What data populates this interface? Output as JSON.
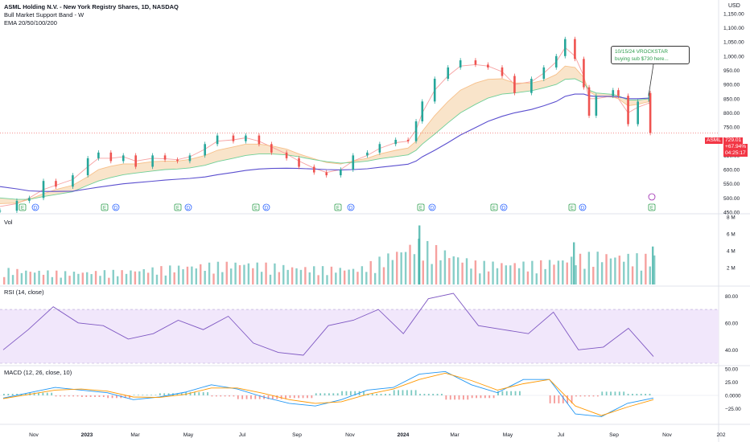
{
  "header": {
    "symbol_line": "ASML Holding N.V. - New York Registry Shares, 1D, NASDAQ",
    "indicator_1": "Bull Market Support Band - W",
    "indicator_2": "EMA 20/50/100/200"
  },
  "price_axis": {
    "currency": "USD",
    "ticks": [
      "1,150.00",
      "1,100.00",
      "1,050.00",
      "1,000.00",
      "950.00",
      "900.00",
      "850.00",
      "800.00",
      "750.00",
      "700.00",
      "650.00",
      "600.00",
      "550.00",
      "500.00",
      "450.00"
    ]
  },
  "price_tag": {
    "symbol": "ASML",
    "last": "729.01",
    "change": "+67.94%",
    "countdown": "04:25:17",
    "color": "#f23645"
  },
  "annotation": {
    "line1": "10/15/24 VROCKSTAR",
    "line2": "buying sub $730 here...",
    "color": "#2e9e4d"
  },
  "event_markers": [
    {
      "label": "E"
    },
    {
      "label": "D"
    },
    {
      "label": "E"
    },
    {
      "label": "D"
    },
    {
      "label": "E"
    },
    {
      "label": "D"
    },
    {
      "label": "E"
    },
    {
      "label": "D"
    },
    {
      "label": "E"
    },
    {
      "label": "D"
    },
    {
      "label": "E"
    },
    {
      "label": "D"
    },
    {
      "label": "E"
    },
    {
      "label": "D"
    },
    {
      "label": "E"
    },
    {
      "label": "D"
    },
    {
      "label": "E"
    }
  ],
  "volume_pane": {
    "title": "Vol",
    "ticks": [
      "8 M",
      "6 M",
      "4 M",
      "2 M"
    ]
  },
  "rsi_pane": {
    "title": "RSI (14, close)",
    "ticks": [
      "80.00",
      "60.00",
      "40.00"
    ]
  },
  "macd_pane": {
    "title": "MACD (12, 26, close, 10)",
    "ticks": [
      "50.00",
      "25.00",
      "0.0000",
      "−25.00"
    ]
  },
  "time_axis": [
    "Nov",
    "2023",
    "Mar",
    "May",
    "Jul",
    "Sep",
    "Nov",
    "2024",
    "Mar",
    "May",
    "Jul",
    "Sep",
    "Nov",
    "202"
  ],
  "colors": {
    "up": "#26a69a",
    "down": "#ef5350",
    "ema20": "#f6a0a0",
    "ema50": "#f7c08a",
    "ema100": "#6fcf97",
    "ema200": "#5b4fcf",
    "band": "#f2c48a",
    "rsi_line": "#7e57c2",
    "rsi_band": "#f1e7fb",
    "macd": "#2196f3",
    "signal": "#ff9800"
  },
  "chart_data": [
    {
      "type": "candlestick",
      "title": "ASML Holding N.V. - New York Registry Shares, 1D, NASDAQ",
      "y_unit": "USD",
      "ylim": [
        450,
        1175
      ],
      "x": [
        "2022-10-13",
        "2022-11-01",
        "2022-11-15",
        "2022-12-01",
        "2022-12-15",
        "2023-01-03",
        "2023-01-20",
        "2023-02-01",
        "2023-02-15",
        "2023-03-01",
        "2023-03-15",
        "2023-04-03",
        "2023-04-17",
        "2023-05-01",
        "2023-05-15",
        "2023-06-01",
        "2023-06-15",
        "2023-07-03",
        "2023-07-17",
        "2023-08-01",
        "2023-08-15",
        "2023-09-01",
        "2023-09-15",
        "2023-10-02",
        "2023-10-16",
        "2023-11-01",
        "2023-11-15",
        "2023-12-01",
        "2023-12-15",
        "2024-01-02",
        "2024-01-16",
        "2024-01-25",
        "2024-02-01",
        "2024-02-15",
        "2024-03-01",
        "2024-03-15",
        "2024-04-01",
        "2024-04-15",
        "2024-05-01",
        "2024-05-15",
        "2024-06-03",
        "2024-06-17",
        "2024-07-01",
        "2024-07-11",
        "2024-07-22",
        "2024-08-01",
        "2024-08-07",
        "2024-08-15",
        "2024-09-03",
        "2024-09-09",
        "2024-09-20",
        "2024-10-01",
        "2024-10-14",
        "2024-10-15"
      ],
      "close": [
        455,
        490,
        500,
        560,
        540,
        580,
        640,
        660,
        630,
        650,
        610,
        650,
        635,
        630,
        650,
        690,
        720,
        700,
        720,
        690,
        660,
        640,
        610,
        590,
        580,
        600,
        650,
        660,
        690,
        705,
        700,
        770,
        840,
        920,
        960,
        985,
        970,
        960,
        930,
        870,
        920,
        960,
        1000,
        1060,
        990,
        890,
        790,
        860,
        880,
        860,
        760,
        840,
        870,
        729
      ],
      "series": [
        {
          "name": "EMA 20",
          "values": [
            470,
            480,
            500,
            530,
            545,
            565,
            610,
            640,
            640,
            645,
            630,
            640,
            638,
            635,
            645,
            672,
            700,
            705,
            712,
            700,
            680,
            655,
            630,
            605,
            590,
            600,
            630,
            650,
            675,
            695,
            700,
            740,
            800,
            880,
            930,
            965,
            970,
            965,
            945,
            900,
            910,
            940,
            980,
            1030,
            1000,
            930,
            850,
            850,
            860,
            850,
            800,
            820,
            835,
            810
          ]
        },
        {
          "name": "EMA 50",
          "values": [
            480,
            482,
            495,
            515,
            530,
            545,
            575,
            600,
            612,
            620,
            620,
            628,
            630,
            630,
            636,
            650,
            668,
            680,
            690,
            690,
            684,
            672,
            655,
            638,
            625,
            620,
            630,
            640,
            655,
            668,
            676,
            700,
            735,
            790,
            840,
            880,
            905,
            918,
            920,
            905,
            905,
            915,
            935,
            965,
            960,
            925,
            875,
            860,
            855,
            850,
            825,
            830,
            840,
            830
          ]
        },
        {
          "name": "EMA 100",
          "values": [
            500,
            495,
            495,
            505,
            512,
            522,
            545,
            560,
            572,
            582,
            588,
            595,
            600,
            602,
            606,
            615,
            628,
            640,
            650,
            655,
            655,
            652,
            645,
            635,
            628,
            623,
            625,
            630,
            638,
            646,
            652,
            668,
            690,
            725,
            765,
            800,
            830,
            852,
            866,
            870,
            878,
            888,
            900,
            918,
            920,
            905,
            880,
            870,
            865,
            860,
            845,
            845,
            850,
            845
          ]
        },
        {
          "name": "EMA 200",
          "values": [
            540,
            532,
            525,
            523,
            523,
            524,
            532,
            538,
            544,
            550,
            554,
            559,
            563,
            566,
            569,
            574,
            582,
            590,
            597,
            602,
            604,
            605,
            604,
            602,
            600,
            599,
            600,
            603,
            608,
            614,
            619,
            630,
            645,
            668,
            695,
            722,
            748,
            770,
            788,
            800,
            812,
            825,
            840,
            858,
            866,
            866,
            860,
            858,
            858,
            856,
            850,
            850,
            852,
            852
          ]
        }
      ]
    },
    {
      "type": "bar",
      "title": "Vol",
      "y_unit": "M",
      "ylim": [
        0,
        8
      ],
      "x": [
        "2022-11",
        "2022-12",
        "2023-01",
        "2023-03",
        "2023-04",
        "2023-07",
        "2023-10",
        "2024-01-25",
        "2024-04",
        "2024-07",
        "2024-08",
        "2024-10-15"
      ],
      "values": [
        2.5,
        2.0,
        2.2,
        3.0,
        3.6,
        2.8,
        2.6,
        7.0,
        3.5,
        3.5,
        5.0,
        4.5
      ]
    },
    {
      "type": "line",
      "title": "RSI (14, close)",
      "ylim": [
        30,
        85
      ],
      "band": [
        30,
        70
      ],
      "x": [
        "2022-10",
        "2022-11",
        "2022-12",
        "2023-01",
        "2023-02",
        "2023-03",
        "2023-04",
        "2023-05",
        "2023-06",
        "2023-07",
        "2023-08",
        "2023-09",
        "2023-10",
        "2023-11",
        "2023-12",
        "2024-01",
        "2024-01-25",
        "2024-02",
        "2024-03",
        "2024-04",
        "2024-05",
        "2024-06",
        "2024-07",
        "2024-08",
        "2024-09",
        "2024-10",
        "2024-10-15"
      ],
      "values": [
        40,
        55,
        72,
        60,
        58,
        48,
        52,
        62,
        55,
        65,
        45,
        38,
        36,
        58,
        62,
        70,
        52,
        78,
        82,
        58,
        55,
        52,
        68,
        40,
        42,
        56,
        35
      ]
    },
    {
      "type": "line",
      "title": "MACD (12, 26, close, 10)",
      "ylim": [
        -50,
        50
      ],
      "x": [
        "2022-10",
        "2022-11",
        "2022-12",
        "2023-01",
        "2023-02",
        "2023-03",
        "2023-04",
        "2023-05",
        "2023-06",
        "2023-07",
        "2023-08",
        "2023-09",
        "2023-10",
        "2023-11",
        "2023-12",
        "2024-01",
        "2024-02",
        "2024-03",
        "2024-04",
        "2024-05",
        "2024-06",
        "2024-07",
        "2024-08",
        "2024-09",
        "2024-10",
        "2024-10-15"
      ],
      "series": [
        {
          "name": "MACD",
          "values": [
            -5,
            5,
            15,
            10,
            5,
            -8,
            -3,
            6,
            20,
            12,
            -3,
            -15,
            -20,
            -8,
            10,
            15,
            40,
            45,
            20,
            5,
            30,
            30,
            -35,
            -40,
            -15,
            -5
          ]
        },
        {
          "name": "Signal",
          "values": [
            -6,
            2,
            10,
            12,
            8,
            -3,
            -4,
            2,
            14,
            14,
            4,
            -8,
            -15,
            -12,
            2,
            12,
            30,
            42,
            28,
            10,
            22,
            30,
            -20,
            -38,
            -22,
            -8
          ]
        }
      ]
    }
  ]
}
